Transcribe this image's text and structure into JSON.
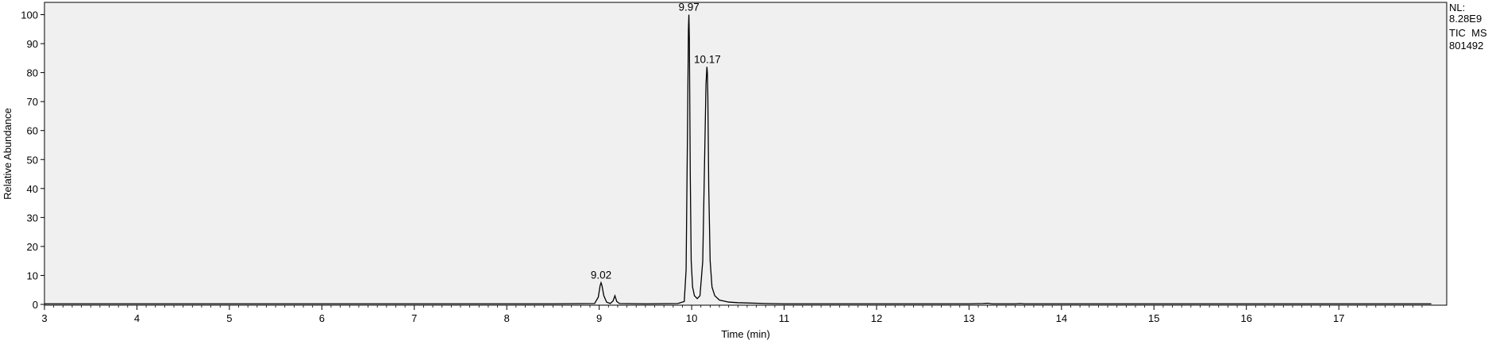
{
  "chart_data": {
    "type": "line",
    "title": "",
    "xlabel": "Time (min)",
    "ylabel": "Relative Abundance",
    "xlim": [
      3,
      18
    ],
    "ylim": [
      0,
      100
    ],
    "x_ticks": [
      3,
      4,
      5,
      6,
      7,
      8,
      9,
      10,
      11,
      12,
      13,
      14,
      15,
      16,
      17
    ],
    "y_ticks": [
      0,
      10,
      20,
      30,
      40,
      50,
      60,
      70,
      80,
      90,
      100
    ],
    "grid": false,
    "legend": "none",
    "side_annotation": [
      "NL:",
      "8.28E9",
      "TIC  MS",
      "801492"
    ],
    "colors": {
      "plot_background": "#f0f0f0",
      "trace": "#000000",
      "axes": "#000000"
    },
    "peaks": [
      {
        "rt": 9.02,
        "height": 7.5,
        "label": "9.02"
      },
      {
        "rt": 9.17,
        "height": 3.0,
        "label": ""
      },
      {
        "rt": 9.97,
        "height": 100,
        "label": "9.97"
      },
      {
        "rt": 10.17,
        "height": 82,
        "label": "10.17"
      },
      {
        "rt": 13.2,
        "height": 0.4,
        "label": ""
      },
      {
        "rt": 13.55,
        "height": 0.3,
        "label": ""
      }
    ],
    "series": [
      {
        "x": [
          3.0,
          4.0,
          5.0,
          6.0,
          7.0,
          8.0,
          8.5,
          8.95,
          8.99,
          9.01,
          9.02,
          9.03,
          9.05,
          9.08,
          9.12,
          9.15,
          9.17,
          9.19,
          9.22,
          9.5,
          9.85,
          9.92,
          9.94,
          9.955,
          9.965,
          9.97,
          9.975,
          9.985,
          9.995,
          10.01,
          10.03,
          10.06,
          10.09,
          10.12,
          10.14,
          10.155,
          10.165,
          10.17,
          10.175,
          10.185,
          10.2,
          10.22,
          10.25,
          10.3,
          10.4,
          10.5,
          10.6,
          10.8,
          11.0,
          12.0,
          13.0,
          13.15,
          13.2,
          13.25,
          13.5,
          13.55,
          13.6,
          14.0,
          15.0,
          16.0,
          17.0,
          18.0
        ],
        "y": [
          0.2,
          0.2,
          0.2,
          0.2,
          0.2,
          0.2,
          0.2,
          0.3,
          2.5,
          6.5,
          7.5,
          6.5,
          3.0,
          0.8,
          0.3,
          1.2,
          3.0,
          1.0,
          0.3,
          0.2,
          0.3,
          1.0,
          12,
          60,
          95,
          100,
          92,
          45,
          15,
          6,
          3,
          2,
          3,
          15,
          50,
          76,
          82,
          80,
          72,
          40,
          15,
          6,
          3,
          1.5,
          0.8,
          0.6,
          0.5,
          0.3,
          0.2,
          0.2,
          0.2,
          0.3,
          0.4,
          0.2,
          0.2,
          0.3,
          0.2,
          0.2,
          0.2,
          0.2,
          0.2,
          0.2
        ]
      }
    ]
  }
}
